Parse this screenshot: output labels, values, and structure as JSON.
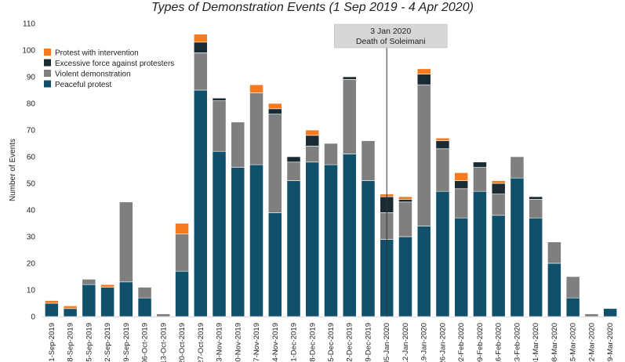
{
  "chart_data": {
    "type": "bar",
    "stacked": true,
    "title": "Types of Demonstration Events (1 Sep 2019 - 4 Apr 2020)",
    "xlabel": "",
    "ylabel": "Number of Events",
    "ylim": [
      0,
      110
    ],
    "yticks": [
      0,
      10,
      20,
      30,
      40,
      50,
      60,
      70,
      80,
      90,
      100,
      110
    ],
    "grid": false,
    "legend_position": "top-left",
    "categories": [
      "01-Sep-2019",
      "08-Sep-2019",
      "15-Sep-2019",
      "22-Sep-2019",
      "29-Sep-2019",
      "06-Oct-2019",
      "13-Oct-2019",
      "20-Oct-2019",
      "27-Oct-2019",
      "03-Nov-2019",
      "10-Nov-2019",
      "17-Nov-2019",
      "24-Nov-2019",
      "01-Dec-2019",
      "08-Dec-2019",
      "15-Dec-2019",
      "22-Dec-2019",
      "29-Dec-2019",
      "05-Jan-2020",
      "12-Jan-2020",
      "19-Jan-2020",
      "26-Jan-2020",
      "02-Feb-2020",
      "09-Feb-2020",
      "16-Feb-2020",
      "23-Feb-2020",
      "01-Mar-2020",
      "08-Mar-2020",
      "15-Mar-2020",
      "22-Mar-2020",
      "29-Mar-2020"
    ],
    "series": [
      {
        "name": "Peaceful protest",
        "color": "#11506b",
        "values": [
          5,
          3,
          12,
          11,
          13,
          7,
          0,
          17,
          85,
          62,
          56,
          57,
          39,
          51,
          58,
          57,
          61,
          51,
          29,
          30,
          34,
          47,
          37,
          47,
          38,
          52,
          37,
          20,
          7,
          0,
          3
        ]
      },
      {
        "name": "Violent demonstration",
        "color": "#7f7f7f",
        "values": [
          0,
          0,
          2,
          0,
          30,
          4,
          1,
          14,
          14,
          19,
          17,
          27,
          37,
          7,
          6,
          8,
          28,
          15,
          10,
          13,
          53,
          16,
          11,
          9,
          8,
          8,
          7,
          8,
          8,
          1,
          0
        ]
      },
      {
        "name": "Excessive force against protesters",
        "color": "#1a2b34",
        "values": [
          0,
          0,
          0,
          0,
          0,
          0,
          0,
          0,
          4,
          1,
          0,
          0,
          2,
          2,
          4,
          0,
          1,
          0,
          6,
          1,
          4,
          3,
          3,
          2,
          4,
          0,
          1,
          0,
          0,
          0,
          0
        ]
      },
      {
        "name": "Protest with intervention",
        "color": "#f47a1f",
        "values": [
          1,
          1,
          0,
          1,
          0,
          0,
          0,
          4,
          3,
          0,
          0,
          3,
          2,
          0,
          2,
          0,
          0,
          0,
          1,
          1,
          2,
          1,
          3,
          0,
          1,
          0,
          0,
          0,
          0,
          0,
          0
        ]
      }
    ],
    "legend_order": [
      "Protest with intervention",
      "Excessive force against protesters",
      "Violent demonstration",
      "Peaceful protest"
    ],
    "annotation": {
      "line1": "3 Jan 2020",
      "line2": "Death of Soleimani",
      "category": "05-Jan-2020"
    }
  }
}
